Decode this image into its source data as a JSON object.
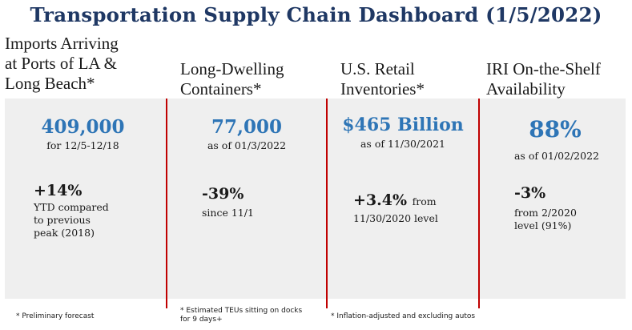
{
  "title": "Transportation Supply Chain Dashboard (1/5/2022)",
  "colors": {
    "title": "#1f3864",
    "accent": "#2e75b6",
    "divider": "#c00000",
    "panel": "#efefef"
  },
  "columns": [
    {
      "header": [
        "Imports Arriving",
        "at Ports of LA &",
        "Long Beach*"
      ],
      "value": "409,000",
      "value_note": "for 12/5-12/18",
      "change": "+14%",
      "change_note": [
        "YTD compared",
        "to previous",
        "peak (2018)"
      ],
      "footnote": [
        "* Preliminary forecast"
      ]
    },
    {
      "header": [
        "Long-Dwelling",
        "Containers*"
      ],
      "value": "77,000",
      "value_note": "as of 01/3/2022",
      "change": "-39%",
      "change_note": [
        "since 11/1"
      ],
      "footnote": [
        "* Estimated TEUs sitting on docks",
        "for 9 days+"
      ]
    },
    {
      "header": [
        "U.S. Retail",
        "Inventories*"
      ],
      "value": "$465 Billion",
      "value_note": "as of 11/30/2021",
      "change": "+3.4%",
      "change_suffix": "from",
      "change_note": [
        "11/30/2020 level"
      ],
      "footnote": [
        "* Inflation-adjusted and excluding autos"
      ]
    },
    {
      "header": [
        "IRI On-the-Shelf",
        "Availability"
      ],
      "value": "88%",
      "value_note": "as of 01/02/2022",
      "change": "-3%",
      "change_note": [
        "from 2/2020",
        "level (91%)"
      ],
      "footnote": []
    }
  ]
}
